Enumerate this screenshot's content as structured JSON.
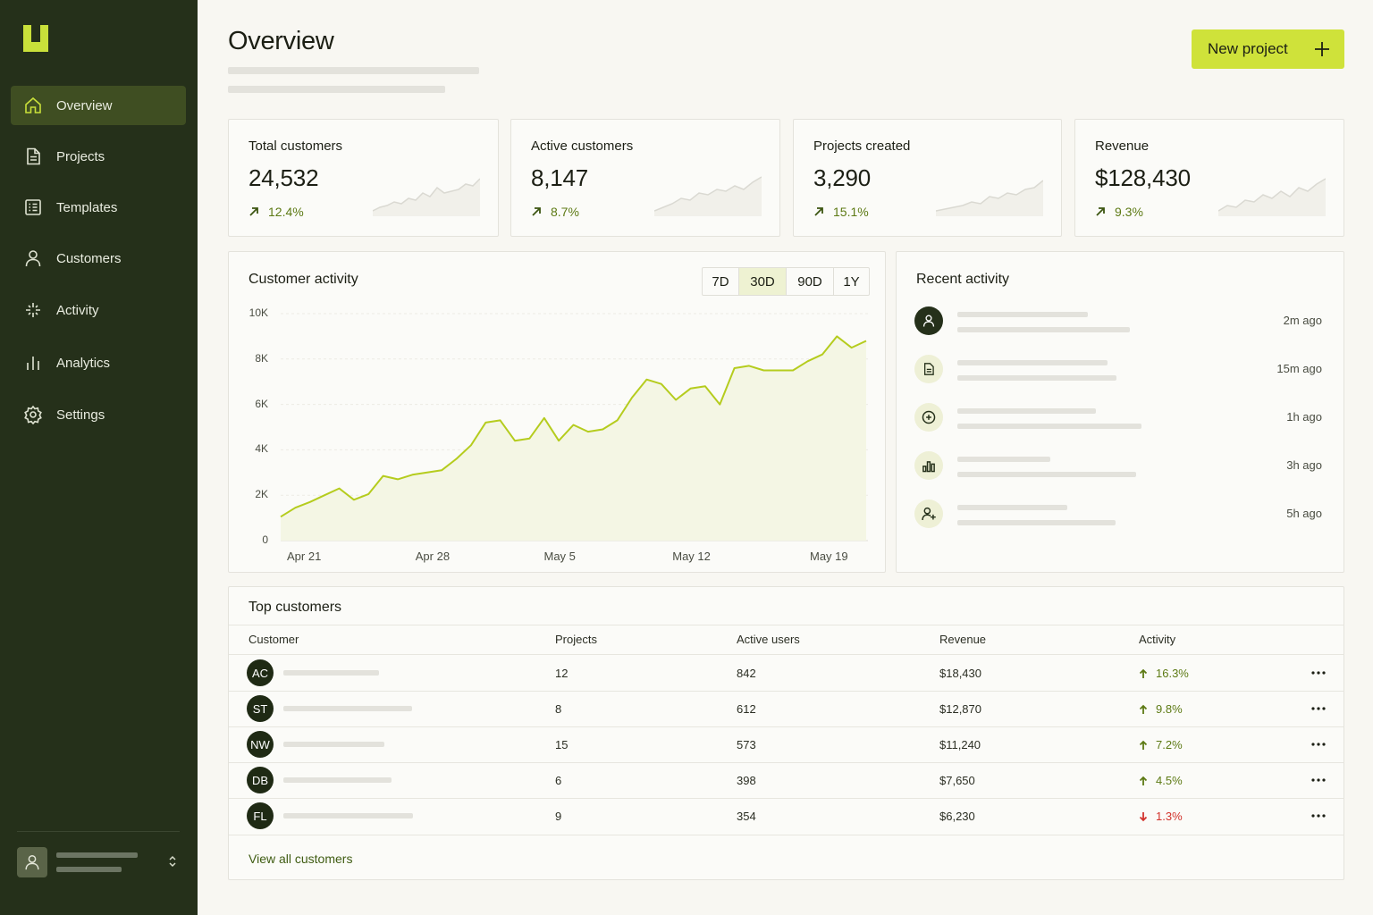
{
  "sidebar": {
    "items": [
      {
        "label": "Overview",
        "icon": "home-icon",
        "active": true
      },
      {
        "label": "Projects",
        "icon": "document-icon"
      },
      {
        "label": "Templates",
        "icon": "template-icon"
      },
      {
        "label": "Customers",
        "icon": "user-icon"
      },
      {
        "label": "Activity",
        "icon": "sparkle-icon"
      },
      {
        "label": "Analytics",
        "icon": "bar-chart-icon"
      },
      {
        "label": "Settings",
        "icon": "gear-icon"
      }
    ]
  },
  "header": {
    "title": "Overview",
    "new_project_label": "New project"
  },
  "stats": [
    {
      "label": "Total customers",
      "value": "24,532",
      "delta": "12.4%"
    },
    {
      "label": "Active customers",
      "value": "8,147",
      "delta": "8.7%"
    },
    {
      "label": "Projects created",
      "value": "3,290",
      "delta": "15.1%"
    },
    {
      "label": "Revenue",
      "value": "$128,430",
      "delta": "9.3%"
    }
  ],
  "activity_chart": {
    "title": "Customer activity",
    "ranges": [
      "7D",
      "30D",
      "90D",
      "1Y"
    ],
    "selected_range": "30D"
  },
  "chart_data": {
    "type": "area",
    "title": "Customer activity",
    "y_ticks": [
      "10K",
      "8K",
      "6K",
      "4K",
      "2K",
      "0"
    ],
    "x_ticks": [
      "Apr 21",
      "Apr 28",
      "May 5",
      "May 12",
      "May 19"
    ],
    "ylim": [
      0,
      10000
    ],
    "grid": true,
    "color": "#b5cc1e",
    "values": [
      1050,
      1450,
      1700,
      2000,
      2300,
      1800,
      2050,
      2850,
      2700,
      2900,
      3000,
      3100,
      3600,
      4200,
      5200,
      5300,
      4400,
      4500,
      5400,
      4400,
      5100,
      4800,
      4900,
      5300,
      6300,
      7100,
      6900,
      6200,
      6700,
      6800,
      6000,
      7600,
      7700,
      7500,
      7500,
      7500,
      7900,
      8200,
      9000,
      8500,
      8800
    ]
  },
  "recent_activity": {
    "title": "Recent activity",
    "items": [
      {
        "icon": "user-icon",
        "time": "2m ago"
      },
      {
        "icon": "document-icon",
        "time": "15m ago"
      },
      {
        "icon": "clock-plus-icon",
        "time": "1h ago"
      },
      {
        "icon": "bar-chart-icon",
        "time": "3h ago"
      },
      {
        "icon": "add-user-icon",
        "time": "5h ago"
      }
    ]
  },
  "top_customers": {
    "title": "Top customers",
    "columns": [
      "Customer",
      "Projects",
      "Active users",
      "Revenue",
      "Activity"
    ],
    "rows": [
      {
        "initials": "AC",
        "projects": "12",
        "active_users": "842",
        "revenue": "$18,430",
        "activity": "16.3%",
        "trend": "up"
      },
      {
        "initials": "ST",
        "projects": "8",
        "active_users": "612",
        "revenue": "$12,870",
        "activity": "9.8%",
        "trend": "up"
      },
      {
        "initials": "NW",
        "projects": "15",
        "active_users": "573",
        "revenue": "$11,240",
        "activity": "7.2%",
        "trend": "up"
      },
      {
        "initials": "DB",
        "projects": "6",
        "active_users": "398",
        "revenue": "$7,650",
        "activity": "4.5%",
        "trend": "up"
      },
      {
        "initials": "FL",
        "projects": "9",
        "active_users": "354",
        "revenue": "$6,230",
        "activity": "1.3%",
        "trend": "down"
      }
    ],
    "view_all_label": "View all customers"
  },
  "colors": {
    "sidebar_bg": "#25301a",
    "accent": "#cfe23a",
    "positive": "#5d7a14",
    "negative": "#d2332c"
  }
}
